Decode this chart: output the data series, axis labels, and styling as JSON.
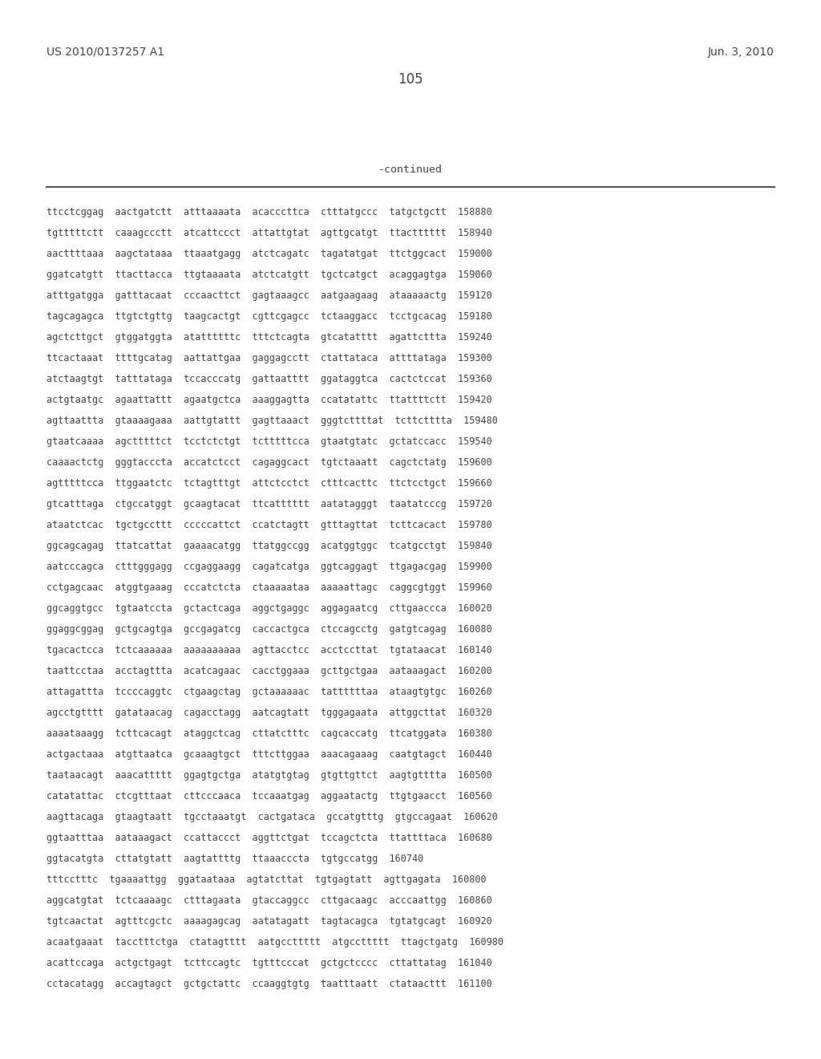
{
  "left_header": "US 2010/0137257 A1",
  "right_header": "Jun. 3, 2010",
  "page_number": "105",
  "continued_label": "-continued",
  "background_color": "#ffffff",
  "text_color": "#444444",
  "header_color": "#444444",
  "line_color": "#555555",
  "seq_font_size": 8.5,
  "header_font_size": 10,
  "page_num_font_size": 12,
  "continued_font_size": 9.5,
  "sequence_lines": [
    "ttcctcggag  aactgatctt  atttaaaata  acacccttca  ctttatgccc  tatgctgctt  158880",
    "tgtttttctt  caaagccctt  atcattccct  attattgtat  agttgcatgt  ttactttttt  158940",
    "aacttttaaa  aagctataaa  ttaaatgagg  atctcagatc  tagatatgat  ttctggcact  159000",
    "ggatcatgtt  ttacttacca  ttgtaaaata  atctcatgtt  tgctcatgct  acaggagtga  159060",
    "atttgatgga  gatttacaat  cccaacttct  gagtaaagcc  aatgaagaag  ataaaaactg  159120",
    "tagcagagca  ttgtctgttg  taagcactgt  cgttcgagcc  tctaaggacc  tcctgcacag  159180",
    "agctcttgct  gtggatggta  atattttttc  tttctcagta  gtcatatttt  agattcttta  159240",
    "ttcactaaat  ttttgcatag  aattattgaa  gaggagcctt  ctattataca  attttataga  159300",
    "atctaagtgt  tatttataga  tccacccatg  gattaatttt  ggataggtca  cactctccat  159360",
    "actgtaatgc  agaattattt  agaatgctca  aaaggagtta  ccatatattc  ttattttctt  159420",
    "agttaattta  gtaaaagaaa  aattgtattt  gagttaaact  gggtcttttat  tcttctttta  159480",
    "gtaatcaaaa  agctttttct  tcctctctgt  tctttttcca  gtaatgtatc  gctatccacc  159540",
    "caaaactctg  gggtacccta  accatctcct  cagaggcact  tgtctaaatt  cagctctatg  159600",
    "agtttttcca  ttggaatctc  tctagtttgt  attctcctct  ctttcacttc  ttctcctgct  159660",
    "gtcatttaga  ctgccatggt  gcaagtacat  ttcatttttt  aatatagggt  taatatcccg  159720",
    "ataatctcac  tgctgccttt  cccccattct  ccatctagtt  gtttagttat  tcttcacact  159780",
    "ggcagcagag  ttatcattat  gaaaacatgg  ttatggccgg  acatggtggc  tcatgcctgt  159840",
    "aatcccagca  ctttgggagg  ccgaggaagg  cagatcatga  ggtcaggagt  ttgagacgag  159900",
    "cctgagcaac  atggtgaaag  cccatctcta  ctaaaaataa  aaaaattagc  caggcgtggt  159960",
    "ggcaggtgcc  tgtaatccta  gctactcaga  aggctgaggc  aggagaatcg  cttgaaccca  160020",
    "ggaggcggag  gctgcagtga  gccgagatcg  caccactgca  ctccagcctg  gatgtcagag  160080",
    "tgacactcca  tctcaaaaaa  aaaaaaaaaa  agttacctcc  acctccttat  tgtataacat  160140",
    "taattcctaa  acctagttta  acatcagaac  cacctggaaa  gcttgctgaa  aataaagact  160200",
    "attagattta  tccccaggtc  ctgaagctag  gctaaaaaac  tattttttaa  ataagtgtgc  160260",
    "agcctgtttt  gatataacag  cagacctagg  aatcagtatt  tgggagaata  attggcttat  160320",
    "aaaataaagg  tcttcacagt  ataggctcag  cttatctttc  cagcaccatg  ttcatggata  160380",
    "actgactaaa  atgttaatca  gcaaagtgct  tttcttggaa  aaacagaaag  caatgtagct  160440",
    "taataacagt  aaacattttt  ggagtgctga  atatgtgtag  gtgttgttct  aagtgtttta  160500",
    "catatattac  ctcgtttaat  cttcccaaca  tccaaatgag  aggaatactg  ttgtgaacct  160560",
    "aagttacaga  gtaagtaatt  tgcctaaatgt  cactgataca  gccatgtttg  gtgccagaat  160620",
    "ggtaatttaa  aataaagact  ccattaccct  aggttctgat  tccagctcta  ttattttaca  160680",
    "ggtacatgta  cttatgtatt  aagtattttg  ttaaacccta  tgtgccatgg  160740",
    "tttcctttc  tgaaaattgg  ggataataaa  agtatcttat  tgtgagtatt  agttgagata  160800",
    "aggcatgtat  tctcaaaagc  ctttagaata  gtaccaggcc  cttgacaagc  acccaattgg  160860",
    "tgtcaactat  agtttcgctc  aaaagagcag  aatatagatt  tagtacagca  tgtatgcagt  160920",
    "acaatgaaat  tacctttctga  ctatagtttt  aatgccttttt  atgccttttt  ttagctgatg  160980",
    "acattccaga  actgctgagt  tcttccagtc  tgtttcccat  gctgctcccc  cttattatag  161040",
    "cctacatagg  accagtagct  gctgctattc  ccaaggtgtg  taatttaatt  ctataacttt  161100"
  ]
}
